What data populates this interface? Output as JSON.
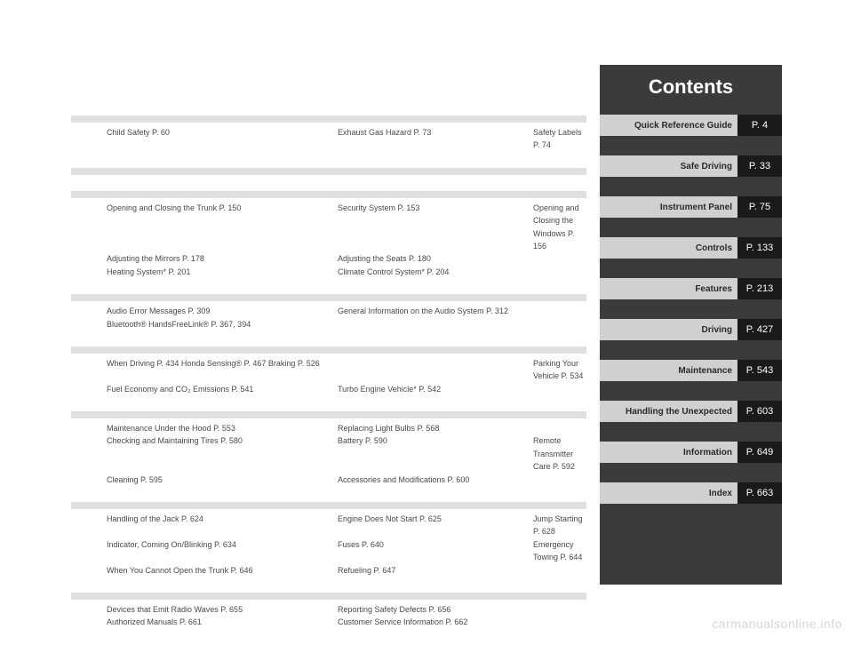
{
  "header": {
    "title": "Contents"
  },
  "nav": [
    {
      "label": "Quick Reference Guide",
      "page": "P. 4"
    },
    {
      "label": "Safe Driving",
      "page": "P. 33"
    },
    {
      "label": "Instrument Panel",
      "page": "P. 75"
    },
    {
      "label": "Controls",
      "page": "P. 133"
    },
    {
      "label": "Features",
      "page": "P. 213"
    },
    {
      "label": "Driving",
      "page": "P. 427"
    },
    {
      "label": "Maintenance",
      "page": "P. 543"
    },
    {
      "label": "Handling the Unexpected",
      "page": "P. 603"
    },
    {
      "label": "Information",
      "page": "P. 649"
    },
    {
      "label": "Index",
      "page": "P. 663"
    }
  ],
  "sections": [
    {
      "rows": [
        [
          "Child Safety P. 60",
          "Exhaust Gas Hazard P. 73",
          "Safety Labels P. 74"
        ]
      ]
    },
    {
      "rows": []
    },
    {
      "rows": [
        [
          "Opening and Closing the Trunk P. 150",
          "Security System P. 153",
          "Opening and Closing the Windows P. 156"
        ],
        [
          "Adjusting the Mirrors P. 178",
          "Adjusting the Seats P. 180",
          ""
        ],
        [
          "Heating System* P. 201",
          "Climate Control System* P. 204",
          ""
        ]
      ]
    },
    {
      "rows": [
        [
          "Audio Error Messages P. 309",
          "General Information on the Audio System P. 312",
          ""
        ],
        [
          "Bluetooth® HandsFreeLink® P. 367, 394",
          "",
          ""
        ]
      ]
    },
    {
      "rows": [
        [
          "When Driving P. 434        Honda Sensing® P. 467       Braking P. 526",
          "",
          "Parking Your Vehicle P. 534"
        ],
        [
          "Fuel Economy and CO₂ Emissions P. 541",
          "Turbo Engine Vehicle* P. 542",
          ""
        ]
      ]
    },
    {
      "rows": [
        [
          "Maintenance Under the Hood P. 553",
          "Replacing Light Bulbs P. 568",
          ""
        ],
        [
          "Checking and Maintaining Tires P. 580",
          "Battery P. 590",
          "Remote Transmitter Care P. 592"
        ],
        [
          "Cleaning P. 595",
          "Accessories and Modifications P. 600",
          ""
        ]
      ]
    },
    {
      "rows": [
        [
          "Handling of the Jack P. 624",
          "Engine Does Not Start P. 625",
          "Jump Starting P. 628"
        ],
        [
          "Indicator, Coming On/Blinking P. 634",
          "              Fuses P. 640",
          "Emergency Towing P. 644"
        ],
        [
          "When You Cannot Open the Trunk P. 646",
          "              Refueling P. 647",
          ""
        ]
      ]
    },
    {
      "rows": [
        [
          "Devices that Emit Radio Waves P. 655",
          "Reporting Safety Defects P. 656",
          ""
        ],
        [
          "Authorized Manuals P. 661",
          "Customer Service Information P. 662",
          ""
        ]
      ]
    }
  ],
  "watermark": "carmanualsonline.info",
  "colors": {
    "panel_bg": "#3b3b3b",
    "nav_label_bg": "#d0d0d0",
    "nav_page_bg": "#1a1a1a",
    "band_bg": "#e0e0e0",
    "text": "#4a4a4a"
  }
}
